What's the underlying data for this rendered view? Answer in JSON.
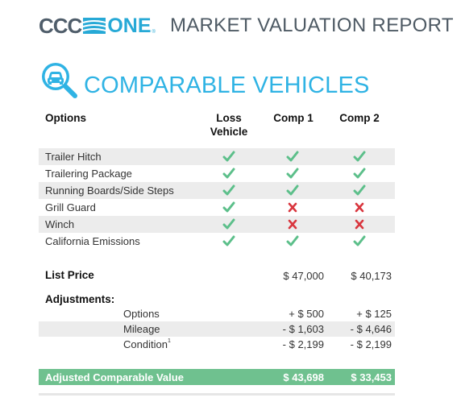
{
  "header": {
    "logo_left": "CCC",
    "logo_right": "ONE",
    "logo_tm": "®",
    "report_title": "MARKET VALUATION REPORT"
  },
  "section": {
    "title": "COMPARABLE VEHICLES",
    "icon": "car-magnifier-icon"
  },
  "columns": {
    "options": "Options",
    "loss_line1": "Loss",
    "loss_line2": "Vehicle",
    "comp1": "Comp 1",
    "comp2": "Comp 2"
  },
  "options": [
    {
      "label": "Trailer Hitch",
      "loss": true,
      "comp1": true,
      "comp2": true
    },
    {
      "label": "Trailering Package",
      "loss": true,
      "comp1": true,
      "comp2": true
    },
    {
      "label": "Running Boards/Side Steps",
      "loss": true,
      "comp1": true,
      "comp2": true
    },
    {
      "label": "Grill Guard",
      "loss": true,
      "comp1": false,
      "comp2": false
    },
    {
      "label": "Winch",
      "loss": true,
      "comp1": false,
      "comp2": false
    },
    {
      "label": "California Emissions",
      "loss": true,
      "comp1": true,
      "comp2": true
    }
  ],
  "list_price": {
    "label": "List Price",
    "comp1": "$ 47,000",
    "comp2": "$ 40,173"
  },
  "adjustments": {
    "title": "Adjustments:",
    "rows": [
      {
        "label": "Options",
        "sup": "",
        "comp1": "+ $ 500",
        "comp2": "+ $ 125"
      },
      {
        "label": "Mileage",
        "sup": "",
        "comp1": "- $ 1,603",
        "comp2": "- $ 4,646"
      },
      {
        "label": "Condition",
        "sup": "1",
        "comp1": "- $ 2,199",
        "comp2": "- $ 2,199"
      }
    ]
  },
  "adjusted_value": {
    "label": "Adjusted Comparable Value",
    "comp1": "$ 43,698",
    "comp2": "$ 33,453"
  },
  "colors": {
    "brand_gray": "#4f5d6a",
    "brand_blue": "#27a9d6",
    "section_blue": "#2fb3e4",
    "check_green": "#5cbf8a",
    "cross_red": "#d9363e",
    "total_green": "#6fc18f",
    "row_shade": "#ececec"
  }
}
